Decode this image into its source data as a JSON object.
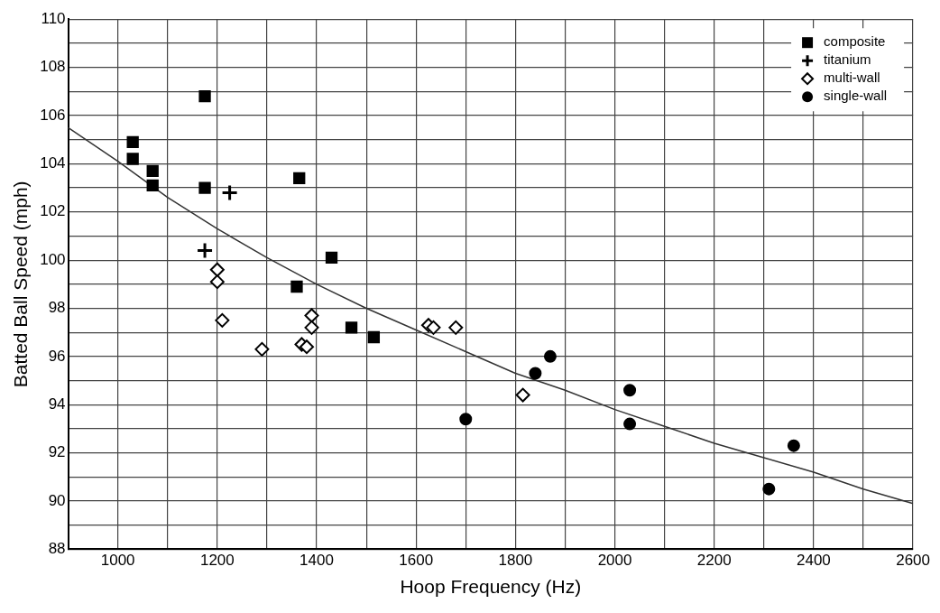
{
  "chart_data": {
    "type": "scatter",
    "xlabel": "Hoop Frequency (Hz)",
    "ylabel": "Batted Ball Speed (mph)",
    "xlim": [
      900,
      2600
    ],
    "xticks": [
      {
        "value": 900,
        "label": null
      },
      1000,
      {
        "value": 1100,
        "label": null
      },
      1200,
      {
        "value": 1300,
        "label": null
      },
      1400,
      {
        "value": 1500,
        "label": null
      },
      1600,
      {
        "value": 1700,
        "label": null
      },
      1800,
      {
        "value": 1900,
        "label": null
      },
      2000,
      {
        "value": 2100,
        "label": null
      },
      2200,
      {
        "value": 2300,
        "label": null
      },
      2400,
      {
        "value": 2500,
        "label": null
      },
      2600
    ],
    "ylim": [
      88,
      110
    ],
    "yticks": [
      88,
      {
        "value": 89,
        "label": null
      },
      90,
      {
        "value": 91,
        "label": null
      },
      92,
      {
        "value": 93,
        "label": null
      },
      94,
      {
        "value": 95,
        "label": null
      },
      96,
      {
        "value": 97,
        "label": null
      },
      98,
      {
        "value": 99,
        "label": null
      },
      100,
      {
        "value": 101,
        "label": null
      },
      102,
      {
        "value": 103,
        "label": null
      },
      104,
      {
        "value": 105,
        "label": null
      },
      106,
      {
        "value": 107,
        "label": null
      },
      108,
      {
        "value": 109,
        "label": null
      },
      110
    ],
    "grid": true,
    "legend": "top right",
    "series": [
      {
        "name": "composite",
        "color": "#000000",
        "marker": "square",
        "x": [
          1030,
          1030,
          1070,
          1070,
          1175,
          1175,
          1365,
          1360,
          1430,
          1470,
          1515
        ],
        "values": [
          104.9,
          104.2,
          103.7,
          103.1,
          106.8,
          103.0,
          103.4,
          98.9,
          100.1,
          97.2,
          96.8
        ]
      },
      {
        "name": "titanium",
        "color": "#000000",
        "marker": "cross",
        "x": [
          1175,
          1225
        ],
        "values": [
          100.4,
          102.8
        ]
      },
      {
        "name": "multi-wall",
        "color": "#000000",
        "marker": "diamond",
        "x": [
          1200,
          1200,
          1210,
          1290,
          1370,
          1380,
          1390,
          1390,
          1625,
          1635,
          1680,
          1815
        ],
        "values": [
          99.6,
          99.1,
          97.5,
          96.3,
          96.5,
          96.4,
          97.7,
          97.2,
          97.3,
          97.2,
          97.2,
          94.4
        ]
      },
      {
        "name": "single-wall",
        "color": "#000000",
        "marker": "circle",
        "x": [
          1700,
          1840,
          1870,
          2030,
          2030,
          2310,
          2360
        ],
        "values": [
          93.4,
          95.3,
          96.0,
          94.6,
          93.2,
          90.5,
          92.3
        ]
      },
      {
        "type": "line",
        "color": "#333333",
        "marker": "none",
        "x": [
          900,
          1000,
          1100,
          1200,
          1300,
          1400,
          1500,
          1600,
          1700,
          1800,
          1900,
          2000,
          2100,
          2200,
          2300,
          2400,
          2500,
          2600
        ],
        "values": [
          105.5,
          104.1,
          102.6,
          101.3,
          100.1,
          99.0,
          98.0,
          97.1,
          96.2,
          95.3,
          94.6,
          93.8,
          93.1,
          92.4,
          91.8,
          91.2,
          90.5,
          89.9
        ]
      }
    ]
  }
}
